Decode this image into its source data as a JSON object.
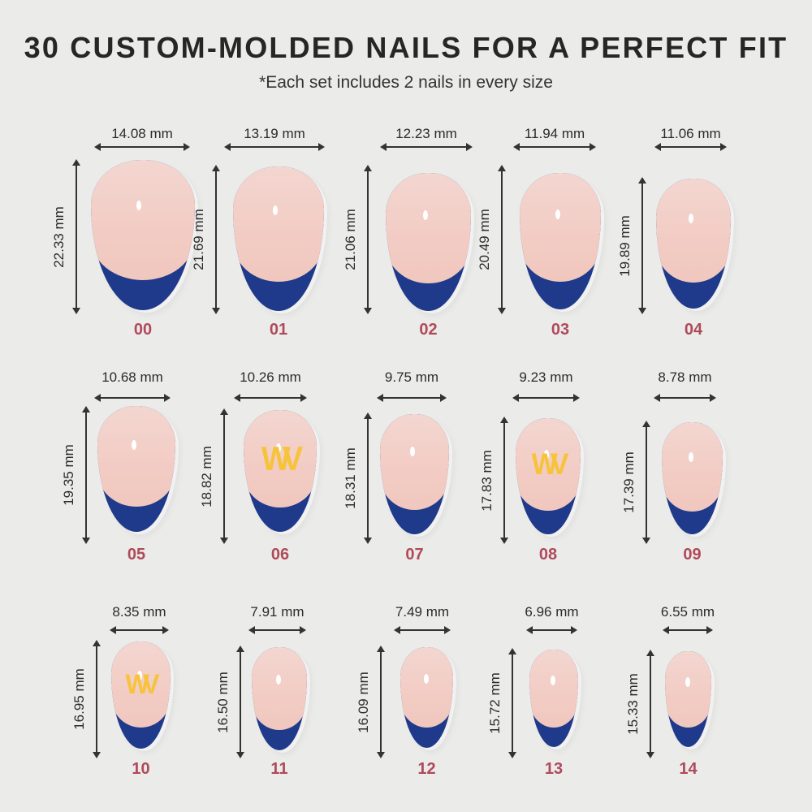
{
  "header": {
    "title": "30 CUSTOM-MOLDED NAILS FOR A PERFECT FIT",
    "subtitle": "*Each set includes 2 nails in every size"
  },
  "colors": {
    "background": "#ebebea",
    "nail_base": "#f2ccc4",
    "tip": "#1f3a8a",
    "logo": "#f6c33b",
    "size_number": "#b04a5a"
  },
  "nails": [
    {
      "size": "00",
      "width": "14.08 mm",
      "length": "22.33 mm",
      "logo": false
    },
    {
      "size": "01",
      "width": "13.19 mm",
      "length": "21.69 mm",
      "logo": false
    },
    {
      "size": "02",
      "width": "12.23 mm",
      "length": "21.06 mm",
      "logo": false
    },
    {
      "size": "03",
      "width": "11.94 mm",
      "length": "20.49 mm",
      "logo": false
    },
    {
      "size": "04",
      "width": "11.06 mm",
      "length": "19.89 mm",
      "logo": false
    },
    {
      "size": "05",
      "width": "10.68 mm",
      "length": "19.35 mm",
      "logo": false
    },
    {
      "size": "06",
      "width": "10.26 mm",
      "length": "18.82 mm",
      "logo": true
    },
    {
      "size": "07",
      "width": "9.75 mm",
      "length": "18.31 mm",
      "logo": false
    },
    {
      "size": "08",
      "width": "9.23 mm",
      "length": "17.83 mm",
      "logo": true
    },
    {
      "size": "09",
      "width": "8.78 mm",
      "length": "17.39 mm",
      "logo": false
    },
    {
      "size": "10",
      "width": "8.35 mm",
      "length": "16.95 mm",
      "logo": true
    },
    {
      "size": "11",
      "width": "7.91 mm",
      "length": "16.50 mm",
      "logo": false
    },
    {
      "size": "12",
      "width": "7.49 mm",
      "length": "16.09 mm",
      "logo": false
    },
    {
      "size": "13",
      "width": "6.96 mm",
      "length": "15.72 mm",
      "logo": false
    },
    {
      "size": "14",
      "width": "6.55 mm",
      "length": "15.33 mm",
      "logo": false
    }
  ],
  "logo_glyph": "WV"
}
